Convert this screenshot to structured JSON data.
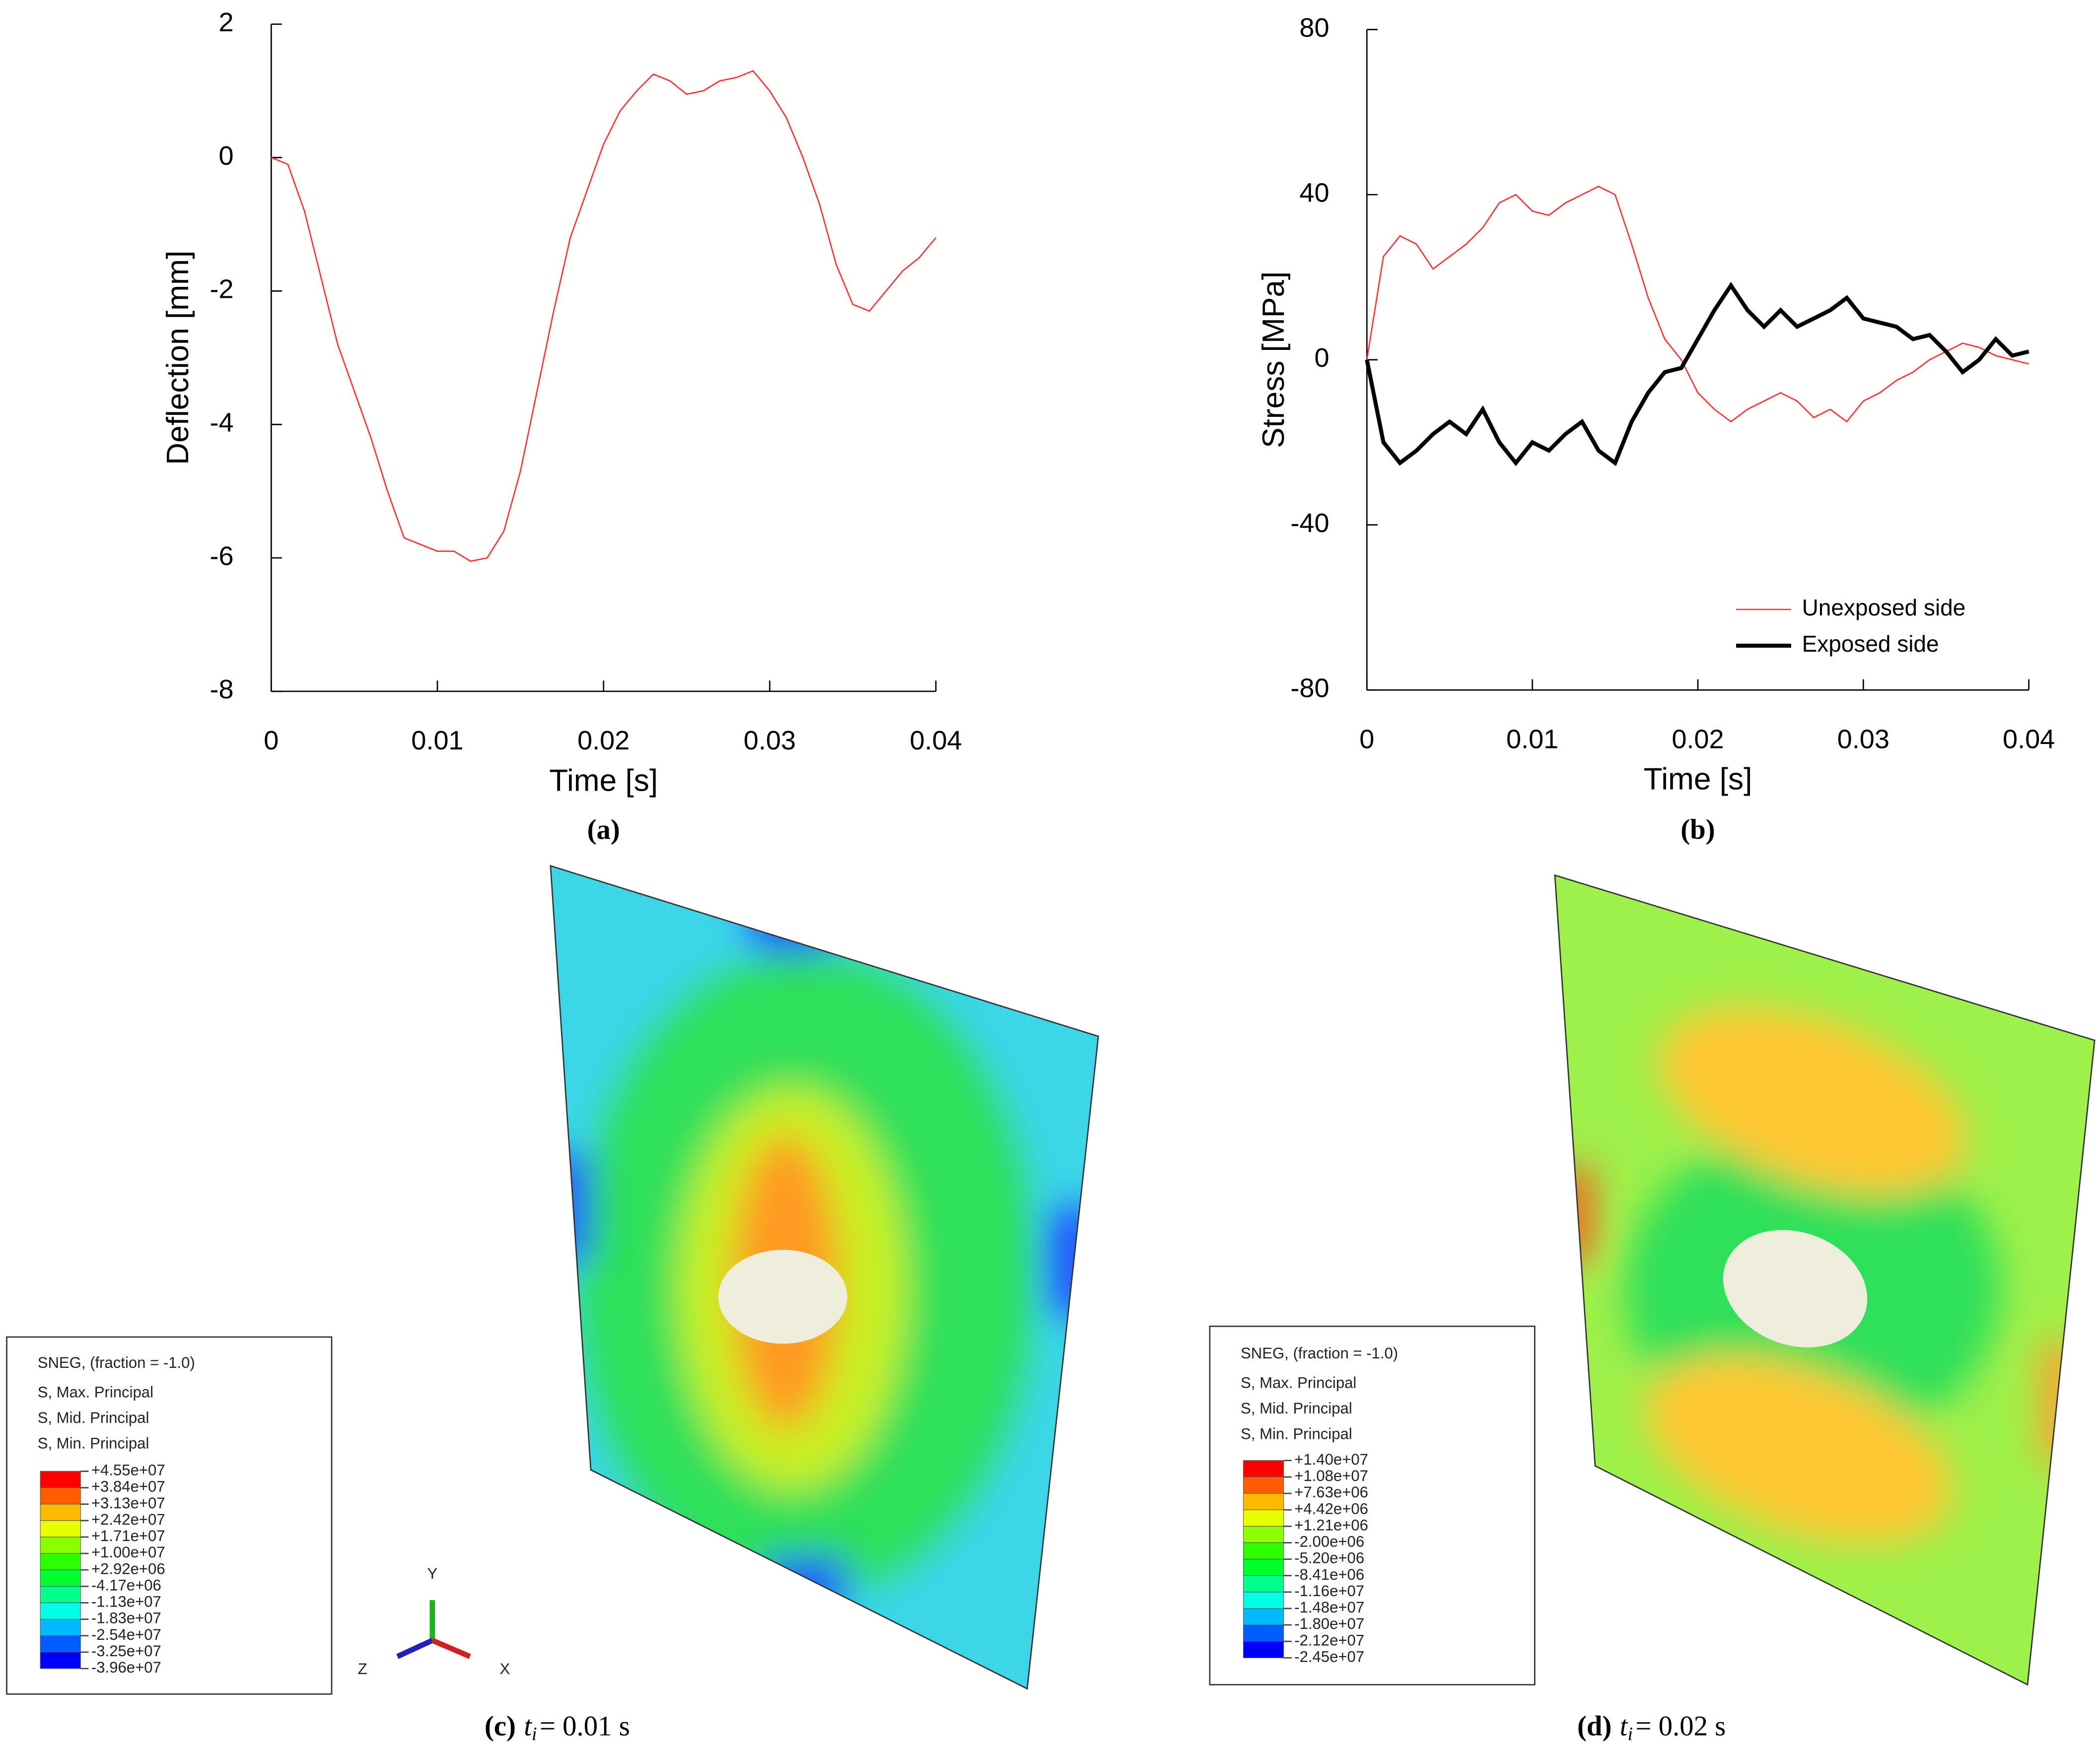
{
  "chart_data": [
    {
      "type": "line",
      "ylabel": "Deflection  [mm]",
      "xlabel": "Time  [s]",
      "xlim": [
        0,
        0.04
      ],
      "xticks": [
        0,
        0.01,
        0.02,
        0.03,
        0.04
      ],
      "ylim": [
        -8,
        2
      ],
      "yticks": [
        -8,
        -6,
        -4,
        -2,
        0,
        2
      ],
      "x": [
        0,
        0.001,
        0.002,
        0.003,
        0.004,
        0.005,
        0.006,
        0.007,
        0.008,
        0.009,
        0.01,
        0.011,
        0.012,
        0.013,
        0.014,
        0.015,
        0.016,
        0.017,
        0.018,
        0.019,
        0.02,
        0.021,
        0.022,
        0.023,
        0.024,
        0.025,
        0.026,
        0.027,
        0.028,
        0.029,
        0.03,
        0.031,
        0.032,
        0.033,
        0.034,
        0.035,
        0.036,
        0.037,
        0.038,
        0.039,
        0.04
      ],
      "series": [
        {
          "color": "#ff3030",
          "width": 1,
          "values": [
            0,
            -0.1,
            -0.8,
            -1.8,
            -2.8,
            -3.5,
            -4.2,
            -5.0,
            -5.7,
            -5.8,
            -5.9,
            -5.9,
            -6.05,
            -6.0,
            -5.6,
            -4.7,
            -3.5,
            -2.3,
            -1.2,
            -0.5,
            0.2,
            0.7,
            1.0,
            1.25,
            1.15,
            0.95,
            1.0,
            1.15,
            1.2,
            1.3,
            1.0,
            0.6,
            0.0,
            -0.7,
            -1.6,
            -2.2,
            -2.3,
            -2.0,
            -1.7,
            -1.5,
            -1.2
          ]
        }
      ],
      "caption": "(a)"
    },
    {
      "type": "line",
      "ylabel": "Stress  [MPa]",
      "xlabel": "Time  [s]",
      "xlim": [
        0,
        0.04
      ],
      "xticks": [
        0,
        0.01,
        0.02,
        0.03,
        0.04
      ],
      "ylim": [
        -80,
        80
      ],
      "yticks": [
        -80,
        -40,
        0,
        40,
        80
      ],
      "legend": "lower right",
      "x": [
        0,
        0.001,
        0.002,
        0.003,
        0.004,
        0.005,
        0.006,
        0.007,
        0.008,
        0.009,
        0.01,
        0.011,
        0.012,
        0.013,
        0.014,
        0.015,
        0.016,
        0.017,
        0.018,
        0.019,
        0.02,
        0.021,
        0.022,
        0.023,
        0.024,
        0.025,
        0.026,
        0.027,
        0.028,
        0.029,
        0.03,
        0.031,
        0.032,
        0.033,
        0.034,
        0.035,
        0.036,
        0.037,
        0.038,
        0.039,
        0.04
      ],
      "series": [
        {
          "name": "Unexposed side",
          "color": "#ff3030",
          "width": 1,
          "values": [
            0,
            25,
            30,
            28,
            22,
            25,
            28,
            32,
            38,
            40,
            36,
            35,
            38,
            40,
            42,
            40,
            28,
            15,
            5,
            0,
            -8,
            -12,
            -15,
            -12,
            -10,
            -8,
            -10,
            -14,
            -12,
            -15,
            -10,
            -8,
            -5,
            -3,
            0,
            2,
            4,
            3,
            1,
            0,
            -1
          ]
        },
        {
          "name": "Exposed side",
          "color": "#000000",
          "width": 3,
          "values": [
            0,
            -20,
            -25,
            -22,
            -18,
            -15,
            -18,
            -12,
            -20,
            -25,
            -20,
            -22,
            -18,
            -15,
            -22,
            -25,
            -15,
            -8,
            -3,
            -2,
            5,
            12,
            18,
            12,
            8,
            12,
            8,
            10,
            12,
            15,
            10,
            9,
            8,
            5,
            6,
            2,
            -3,
            0,
            5,
            1,
            2
          ]
        }
      ],
      "caption": "(b)"
    }
  ],
  "contours": [
    {
      "caption": "(c)",
      "var": "t",
      "sub": "i",
      "rest": "= 0.01 s",
      "header": [
        "SNEG, (fraction = -1.0)",
        "S, Max. Principal",
        "S, Mid. Principal",
        "S, Min. Principal"
      ],
      "levels": [
        "+4.55e+07",
        "+3.84e+07",
        "+3.13e+07",
        "+2.42e+07",
        "+1.71e+07",
        "+1.00e+07",
        "+2.92e+06",
        "-4.17e+06",
        "-1.13e+07",
        "-1.83e+07",
        "-2.54e+07",
        "-3.25e+07",
        "-3.96e+07"
      ],
      "triad": [
        "Y",
        "Z",
        "X"
      ]
    },
    {
      "caption": "(d)",
      "var": "t",
      "sub": "i",
      "rest": "= 0.02 s",
      "header": [
        "SNEG, (fraction = -1.0)",
        "S, Max. Principal",
        "S, Mid. Principal",
        "S, Min. Principal"
      ],
      "levels": [
        "+1.40e+07",
        "+1.08e+07",
        "+7.63e+06",
        "+4.42e+06",
        "+1.21e+06",
        "-2.00e+06",
        "-5.20e+06",
        "-8.41e+06",
        "-1.16e+07",
        "-1.48e+07",
        "-1.80e+07",
        "-2.12e+07",
        "-2.45e+07"
      ]
    }
  ]
}
